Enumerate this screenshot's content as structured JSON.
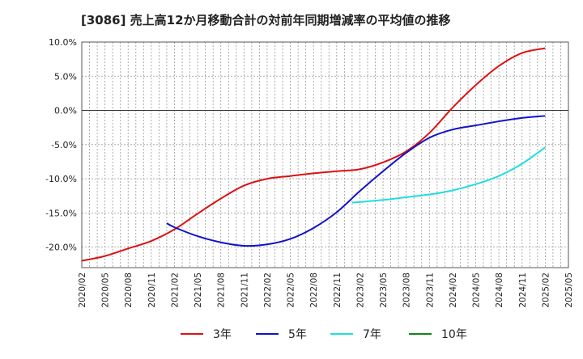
{
  "chart_data": {
    "type": "line",
    "title": "[3086]  売上高12か月移動合計の対前年同期増減率の平均値の推移",
    "xlabel": "",
    "ylabel": "",
    "ylim": [
      -23,
      10
    ],
    "y_ticks": [
      10,
      5,
      0,
      -5,
      -10,
      -15,
      -20
    ],
    "y_tick_labels": [
      "10.0%",
      "5.0%",
      "0.0%",
      "-5.0%",
      "-10.0%",
      "-15.0%",
      "-20.0%"
    ],
    "x_tick_labels": [
      "2020/02",
      "2020/05",
      "2020/08",
      "2020/11",
      "2021/02",
      "2021/05",
      "2021/08",
      "2021/11",
      "2022/02",
      "2022/05",
      "2022/08",
      "2022/11",
      "2023/02",
      "2023/05",
      "2023/08",
      "2023/11",
      "2024/02",
      "2024/05",
      "2024/08",
      "2024/11",
      "2025/02",
      "2025/05"
    ],
    "grid": true,
    "legend_position": "bottom",
    "series": [
      {
        "name": "3年",
        "color": "#dd1111",
        "points": [
          [
            "2020/02",
            -22.0
          ],
          [
            "2020/05",
            -21.3
          ],
          [
            "2020/08",
            -20.2
          ],
          [
            "2020/11",
            -19.1
          ],
          [
            "2021/02",
            -17.4
          ],
          [
            "2021/05",
            -15.1
          ],
          [
            "2021/08",
            -12.9
          ],
          [
            "2021/11",
            -11.0
          ],
          [
            "2022/02",
            -10.0
          ],
          [
            "2022/05",
            -9.6
          ],
          [
            "2022/08",
            -9.2
          ],
          [
            "2022/11",
            -8.9
          ],
          [
            "2023/02",
            -8.6
          ],
          [
            "2023/05",
            -7.6
          ],
          [
            "2023/08",
            -6.0
          ],
          [
            "2023/11",
            -3.3
          ],
          [
            "2024/02",
            0.4
          ],
          [
            "2024/05",
            3.7
          ],
          [
            "2024/08",
            6.5
          ],
          [
            "2024/11",
            8.4
          ],
          [
            "2025/02",
            9.1
          ]
        ]
      },
      {
        "name": "5年",
        "color": "#1111cc",
        "points": [
          [
            "2021/01",
            -16.5
          ],
          [
            "2021/02",
            -17.1
          ],
          [
            "2021/05",
            -18.4
          ],
          [
            "2021/08",
            -19.3
          ],
          [
            "2021/11",
            -19.8
          ],
          [
            "2022/02",
            -19.6
          ],
          [
            "2022/05",
            -18.8
          ],
          [
            "2022/08",
            -17.2
          ],
          [
            "2022/11",
            -14.9
          ],
          [
            "2023/02",
            -11.8
          ],
          [
            "2023/05",
            -8.9
          ],
          [
            "2023/08",
            -6.2
          ],
          [
            "2023/11",
            -4.0
          ],
          [
            "2024/02",
            -2.8
          ],
          [
            "2024/05",
            -2.2
          ],
          [
            "2024/08",
            -1.6
          ],
          [
            "2024/11",
            -1.1
          ],
          [
            "2025/02",
            -0.8
          ]
        ]
      },
      {
        "name": "7年",
        "color": "#22dddd",
        "points": [
          [
            "2023/01",
            -13.5
          ],
          [
            "2023/02",
            -13.4
          ],
          [
            "2023/05",
            -13.1
          ],
          [
            "2023/08",
            -12.7
          ],
          [
            "2023/11",
            -12.3
          ],
          [
            "2024/02",
            -11.7
          ],
          [
            "2024/05",
            -10.8
          ],
          [
            "2024/08",
            -9.6
          ],
          [
            "2024/11",
            -7.8
          ],
          [
            "2025/02",
            -5.4
          ]
        ]
      },
      {
        "name": "10年",
        "color": "#118811",
        "points": []
      }
    ]
  }
}
